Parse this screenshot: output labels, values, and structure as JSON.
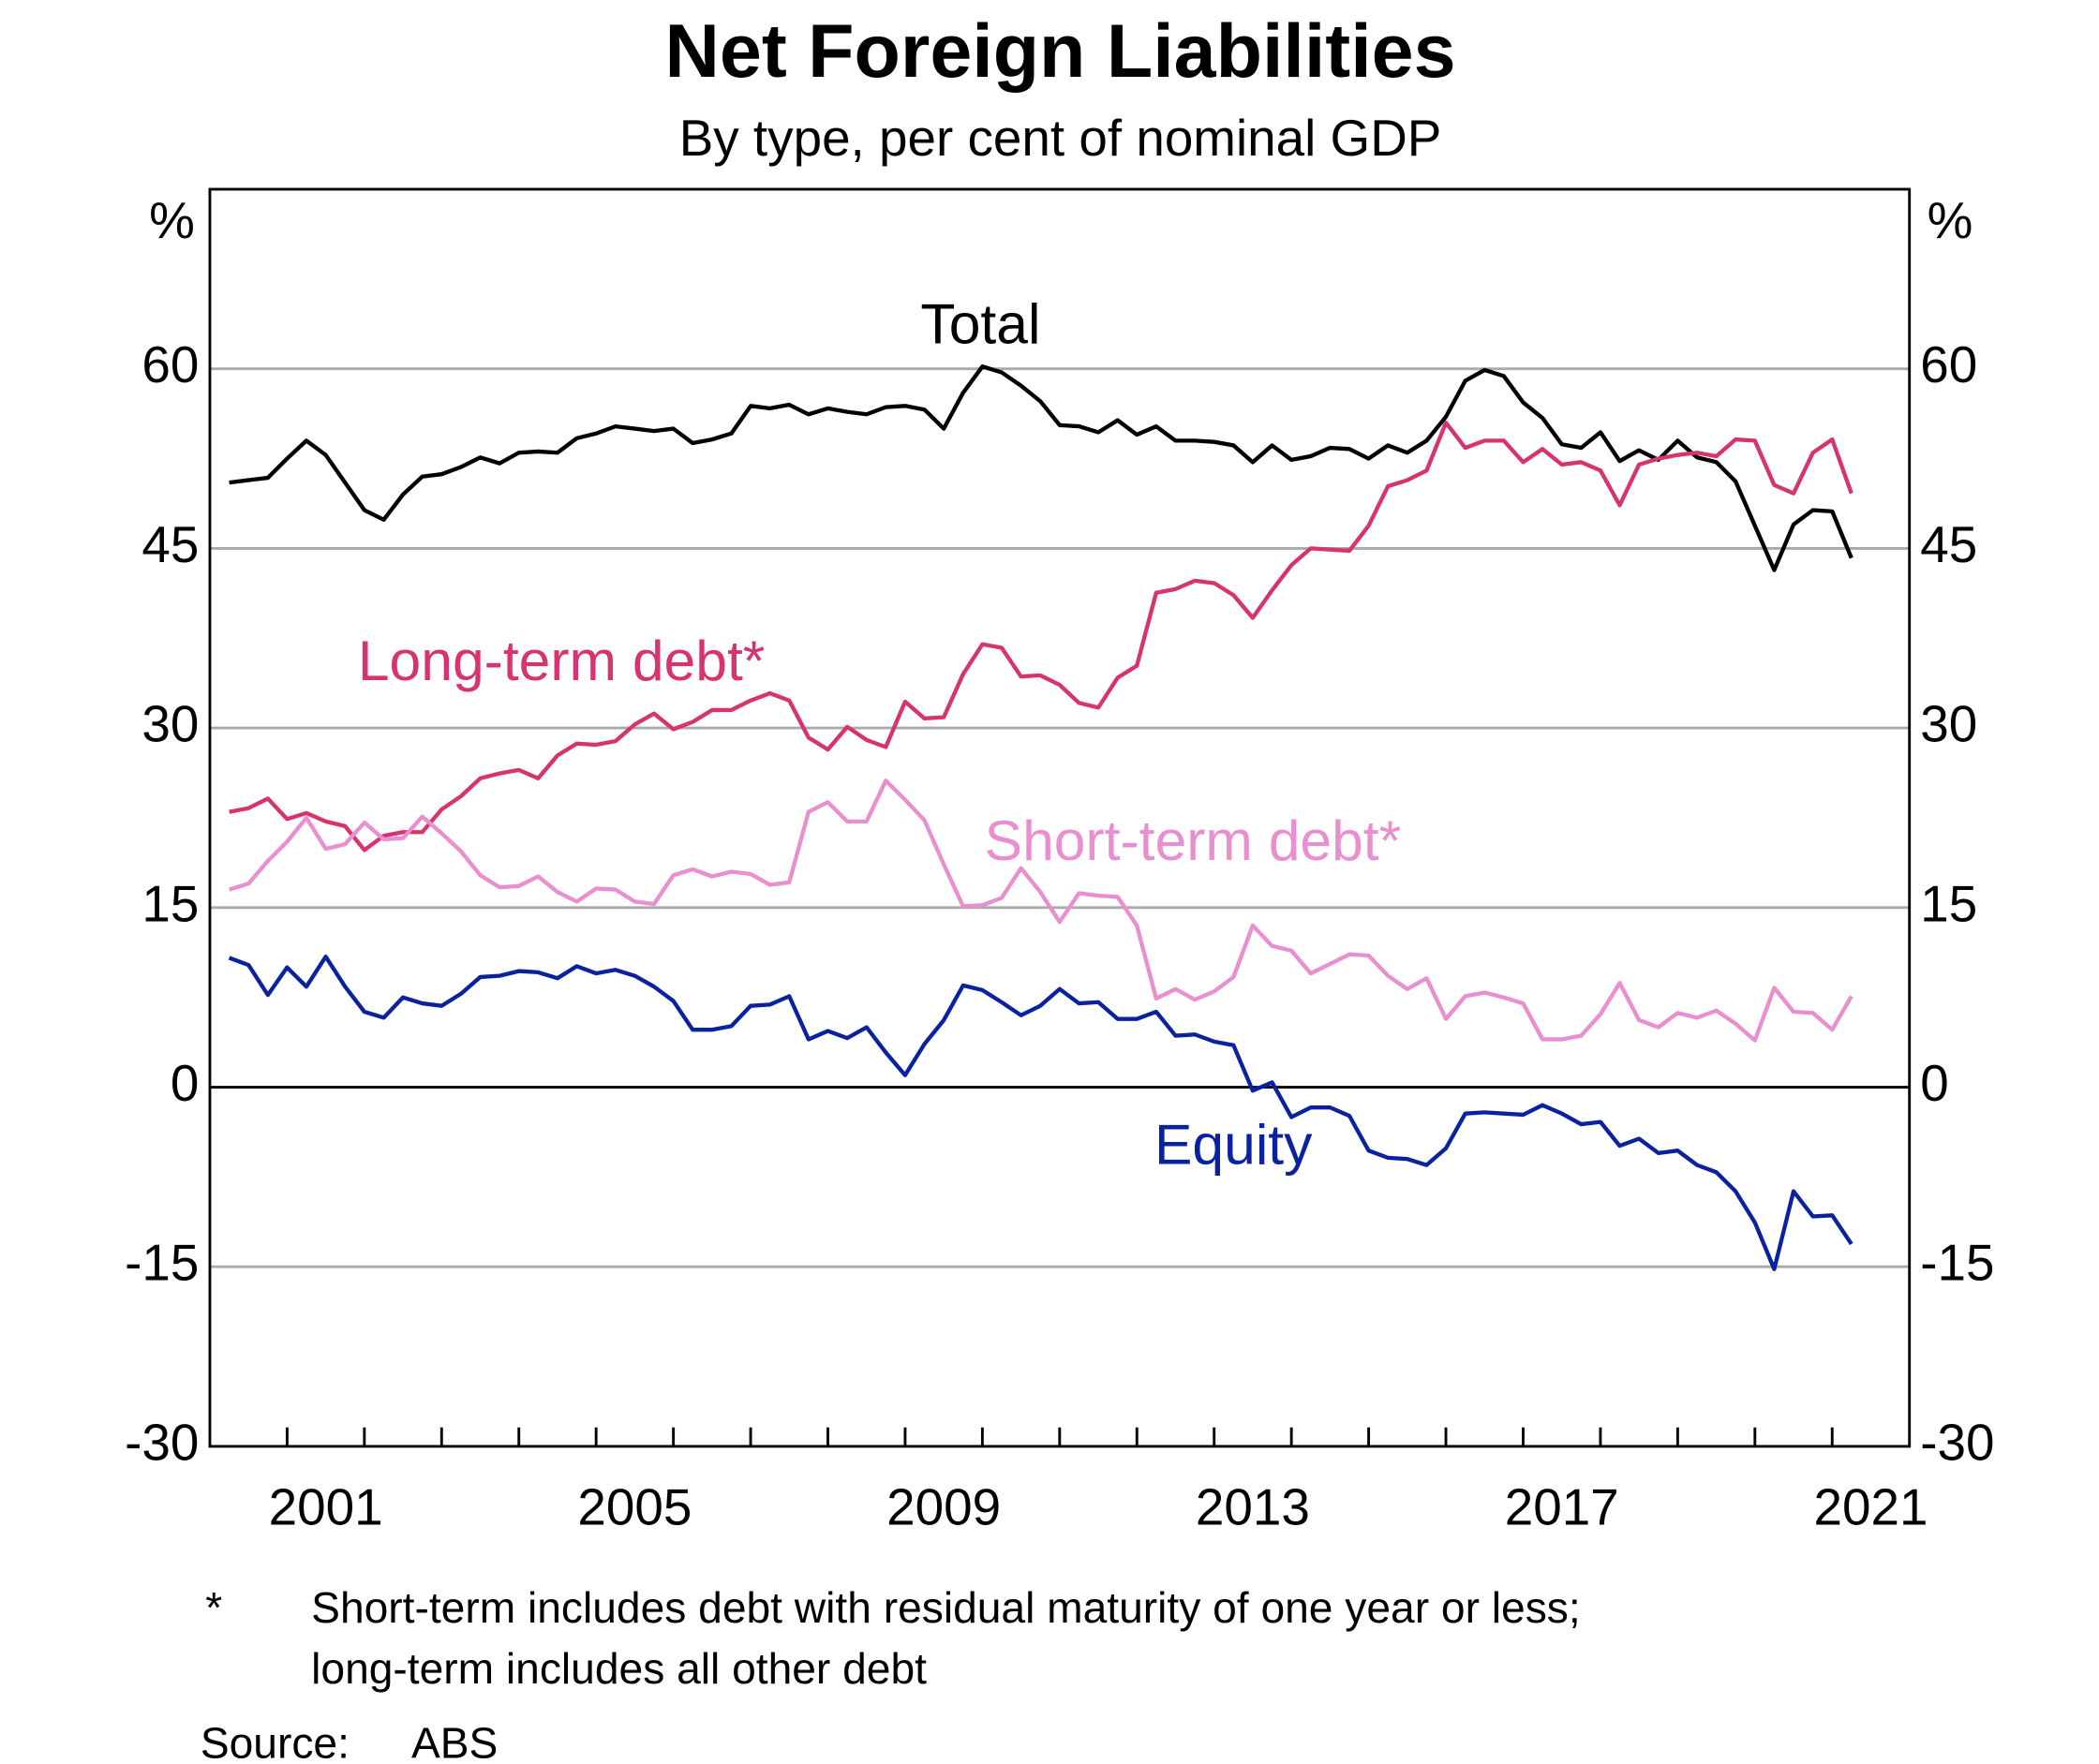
{
  "chart_data": {
    "type": "line",
    "title": "Net Foreign Liabilities",
    "subtitle": "By type, per cent of nominal GDP",
    "y_unit_left": "%",
    "y_unit_right": "%",
    "x": [
      2000.25,
      2000.5,
      2000.75,
      2001,
      2001.25,
      2001.5,
      2001.75,
      2002,
      2002.25,
      2002.5,
      2002.75,
      2003,
      2003.25,
      2003.5,
      2003.75,
      2004,
      2004.25,
      2004.5,
      2004.75,
      2005,
      2005.25,
      2005.5,
      2005.75,
      2006,
      2006.25,
      2006.5,
      2006.75,
      2007,
      2007.25,
      2007.5,
      2007.75,
      2008,
      2008.25,
      2008.5,
      2008.75,
      2009,
      2009.25,
      2009.5,
      2009.75,
      2010,
      2010.25,
      2010.5,
      2010.75,
      2011,
      2011.25,
      2011.5,
      2011.75,
      2012,
      2012.25,
      2012.5,
      2012.75,
      2013,
      2013.25,
      2013.5,
      2013.75,
      2014,
      2014.25,
      2014.5,
      2014.75,
      2015,
      2015.25,
      2015.5,
      2015.75,
      2016,
      2016.25,
      2016.5,
      2016.75,
      2017,
      2017.25,
      2017.5,
      2017.75,
      2018,
      2018.25,
      2018.5,
      2018.75,
      2019,
      2019.25,
      2019.5,
      2019.75,
      2020,
      2020.25,
      2020.5,
      2020.75,
      2021,
      2021.25
    ],
    "series": [
      {
        "name": "Total",
        "color": "#000000",
        "values": [
          50.5,
          50.7,
          50.9,
          52.5,
          54.0,
          52.8,
          50.5,
          48.2,
          47.4,
          49.5,
          51.0,
          51.2,
          51.8,
          52.6,
          52.1,
          53.0,
          53.1,
          53.0,
          54.2,
          54.6,
          55.2,
          55.0,
          54.8,
          55.0,
          53.8,
          54.1,
          54.6,
          56.9,
          56.7,
          57.0,
          56.2,
          56.7,
          56.4,
          56.2,
          56.8,
          56.9,
          56.6,
          55.0,
          58.0,
          60.2,
          59.7,
          58.6,
          57.3,
          55.3,
          55.2,
          54.7,
          55.7,
          54.5,
          55.2,
          54.0,
          54.0,
          53.9,
          53.6,
          52.2,
          53.6,
          52.4,
          52.7,
          53.4,
          53.3,
          52.5,
          53.6,
          53.0,
          54.0,
          56.0,
          59.0,
          59.9,
          59.4,
          57.2,
          55.9,
          53.7,
          53.4,
          54.7,
          52.3,
          53.2,
          52.4,
          54.0,
          52.6,
          52.2,
          50.6,
          46.9,
          43.2,
          47.0,
          48.2,
          48.1,
          44.2
        ]
      },
      {
        "name": "Long-term debt*",
        "color": "#d6336f",
        "values": [
          23.0,
          23.3,
          24.1,
          22.4,
          22.9,
          22.2,
          21.8,
          19.8,
          21.0,
          21.3,
          21.3,
          23.2,
          24.3,
          25.8,
          26.2,
          26.5,
          25.8,
          27.7,
          28.7,
          28.6,
          28.9,
          30.3,
          31.2,
          29.9,
          30.5,
          31.5,
          31.5,
          32.3,
          32.9,
          32.3,
          29.2,
          28.2,
          30.1,
          29.0,
          28.4,
          32.2,
          30.8,
          30.9,
          34.5,
          37.0,
          36.7,
          34.3,
          34.4,
          33.6,
          32.1,
          31.7,
          34.2,
          35.2,
          41.3,
          41.6,
          42.3,
          42.1,
          41.1,
          39.2,
          41.5,
          43.6,
          45.0,
          44.9,
          44.8,
          46.9,
          50.2,
          50.7,
          51.5,
          55.5,
          53.4,
          54.0,
          54.0,
          52.2,
          53.3,
          52.0,
          52.2,
          51.5,
          48.6,
          52.0,
          52.5,
          52.8,
          53.0,
          52.7,
          54.1,
          54.0,
          50.3,
          49.6,
          53.0,
          54.1,
          49.6
        ]
      },
      {
        "name": "Short-term debt*",
        "color": "#e98fcf",
        "values": [
          16.5,
          17.0,
          18.9,
          20.5,
          22.5,
          19.9,
          20.3,
          22.1,
          20.7,
          20.8,
          22.6,
          21.2,
          19.7,
          17.7,
          16.7,
          16.8,
          17.6,
          16.3,
          15.5,
          16.6,
          16.5,
          15.5,
          15.3,
          17.7,
          18.2,
          17.6,
          18.0,
          17.8,
          16.9,
          17.1,
          23.0,
          23.8,
          22.2,
          22.2,
          25.6,
          24.0,
          22.3,
          18.6,
          15.1,
          15.2,
          15.8,
          18.3,
          16.3,
          13.8,
          16.2,
          16.0,
          15.9,
          13.5,
          7.4,
          8.2,
          7.3,
          8.0,
          9.2,
          13.5,
          11.8,
          11.4,
          9.5,
          10.3,
          11.1,
          11.0,
          9.3,
          8.2,
          9.1,
          5.7,
          7.6,
          7.9,
          7.5,
          7.0,
          4.0,
          4.0,
          4.3,
          6.1,
          8.7,
          5.6,
          5.0,
          6.2,
          5.8,
          6.4,
          5.3,
          3.9,
          8.3,
          6.3,
          6.2,
          4.8,
          7.6
        ]
      },
      {
        "name": "Equity",
        "color": "#0a22a0",
        "values": [
          10.8,
          10.2,
          7.7,
          10.0,
          8.4,
          10.9,
          8.4,
          6.3,
          5.8,
          7.5,
          7.0,
          6.8,
          7.8,
          9.2,
          9.3,
          9.7,
          9.6,
          9.1,
          10.1,
          9.5,
          9.8,
          9.3,
          8.4,
          7.2,
          4.8,
          4.8,
          5.1,
          6.8,
          6.9,
          7.6,
          4.0,
          4.7,
          4.1,
          5.0,
          2.9,
          1.0,
          3.6,
          5.6,
          8.5,
          8.1,
          7.1,
          6.0,
          6.8,
          8.2,
          7.0,
          7.1,
          5.7,
          5.7,
          6.3,
          4.3,
          4.4,
          3.8,
          3.5,
          -0.3,
          0.4,
          -2.5,
          -1.7,
          -1.7,
          -2.4,
          -5.3,
          -5.9,
          -6.0,
          -6.5,
          -5.1,
          -2.2,
          -2.1,
          -2.2,
          -2.3,
          -1.5,
          -2.2,
          -3.1,
          -2.9,
          -4.9,
          -4.3,
          -5.5,
          -5.3,
          -6.5,
          -7.1,
          -8.7,
          -11.3,
          -15.2,
          -8.7,
          -10.8,
          -10.7,
          -13.1
        ]
      }
    ],
    "xlim": [
      2000,
      2022
    ],
    "xticks": [
      {
        "value": 2001.5,
        "label": "2001"
      },
      {
        "value": 2005.5,
        "label": "2005"
      },
      {
        "value": 2009.5,
        "label": "2009"
      },
      {
        "value": 2013.5,
        "label": "2013"
      },
      {
        "value": 2017.5,
        "label": "2017"
      },
      {
        "value": 2021.5,
        "label": "2021"
      }
    ],
    "ylim": [
      -30,
      75
    ],
    "yticks": [
      -30,
      -15,
      0,
      15,
      30,
      45,
      60
    ],
    "grid": true,
    "footnote_marker": "*",
    "footnote": [
      "Short-term includes debt with residual maturity of one year or less;",
      "long-term includes all other debt"
    ],
    "source_label": "Source:",
    "source": "ABS"
  }
}
